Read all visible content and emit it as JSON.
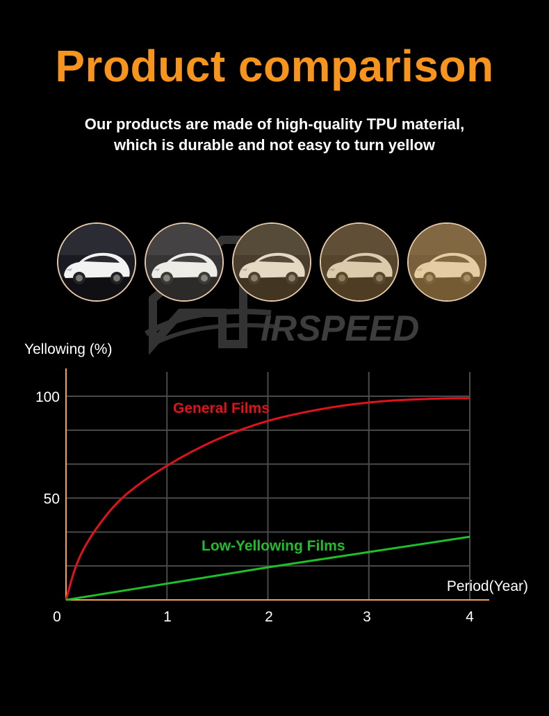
{
  "header": {
    "title": "Product comparison",
    "subtitle_line1": "Our products are made of high-quality TPU material,",
    "subtitle_line2": "which is durable and not easy to turn yellow"
  },
  "watermark": {
    "brand_text": "IRSPEED"
  },
  "thumbnails": [
    {
      "tint": "#000000",
      "tint_opacity": 0.0
    },
    {
      "tint": "#d9c7a0",
      "tint_opacity": 0.15
    },
    {
      "tint": "#c79a4a",
      "tint_opacity": 0.28
    },
    {
      "tint": "#b88a3d",
      "tint_opacity": 0.38
    },
    {
      "tint": "#d7a552",
      "tint_opacity": 0.5
    }
  ],
  "colors": {
    "title_orange": "#f7941d",
    "axis": "#f2a25c",
    "grid": "#4a4a4a",
    "general": "#e0121b",
    "low": "#1fbf2a",
    "thumb_border": "#e7c9a8"
  },
  "chart_data": {
    "type": "line",
    "title": "",
    "xlabel": "Period(Year)",
    "ylabel": "Yellowing (%)",
    "xlim": [
      0,
      4
    ],
    "ylim": [
      0,
      100
    ],
    "x_ticks": [
      "0",
      "1",
      "2",
      "3",
      "4"
    ],
    "y_ticks": [
      "50",
      "100"
    ],
    "y_tick_values": [
      50,
      100
    ],
    "grid": true,
    "series": [
      {
        "name": "General Films",
        "x": [
          0,
          0.1,
          0.25,
          0.5,
          0.75,
          1,
          1.25,
          1.5,
          1.75,
          2,
          2.25,
          2.5,
          2.75,
          3,
          3.25,
          3.5,
          3.75,
          4
        ],
        "y": [
          0,
          18,
          32,
          48,
          58,
          66,
          73,
          79,
          84,
          88,
          91,
          93.5,
          95.5,
          97,
          98,
          98.5,
          99,
          99
        ]
      },
      {
        "name": "Low-Yellowing Films",
        "x": [
          0,
          1,
          2,
          3,
          4
        ],
        "y": [
          0,
          8,
          16,
          23.5,
          31
        ]
      }
    ]
  }
}
